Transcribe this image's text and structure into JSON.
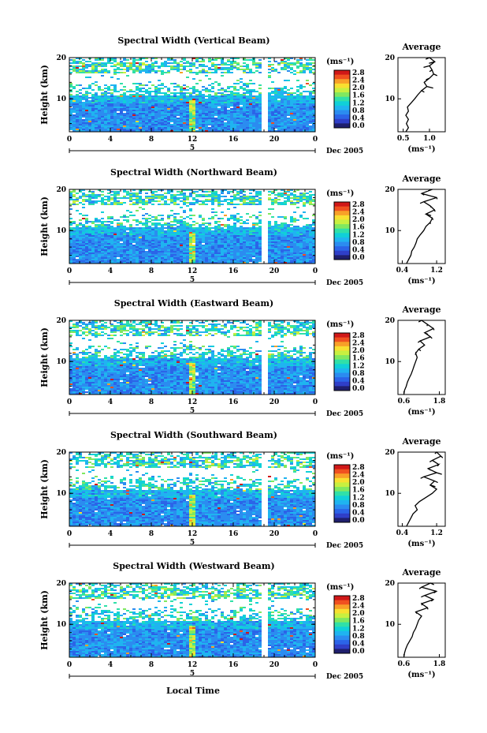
{
  "figure": {
    "xlabel": "Local Time",
    "ylabel": "Height (km)",
    "avg_title": "Average",
    "avg_unit": "(ms⁻¹)",
    "cb_unit": "(ms⁻¹)",
    "date_label": "Dec 2005",
    "day_label": "5",
    "colorbar_colors": [
      "#1f1f6e",
      "#2f3fc8",
      "#2b64e8",
      "#2b8cf0",
      "#1fb4f0",
      "#10d0d8",
      "#30e0a8",
      "#80e860",
      "#c8f040",
      "#f8e030",
      "#f8a028",
      "#f05020",
      "#d01818"
    ]
  },
  "chart_data": [
    {
      "type": "heatmap",
      "title": "Spectral Width (Vertical Beam)",
      "x_ticks": [
        "0",
        "4",
        "8",
        "12",
        "16",
        "20",
        "0"
      ],
      "y_ticks": [
        "20",
        "10"
      ],
      "ylim": [
        2,
        20
      ],
      "xlim": [
        0,
        24
      ],
      "colorbar_ticks": [
        "2.8",
        "2.4",
        "2.0",
        "1.6",
        "1.2",
        "0.8",
        "0.4",
        "0.0"
      ],
      "avg_x_ticks": [
        "0.5",
        "1.0"
      ],
      "avg_xlim": [
        0.4,
        1.3
      ],
      "avg_profile": [
        [
          0.55,
          2
        ],
        [
          0.6,
          3
        ],
        [
          0.56,
          4
        ],
        [
          0.6,
          5
        ],
        [
          0.55,
          6
        ],
        [
          0.6,
          7
        ],
        [
          0.58,
          8
        ],
        [
          0.65,
          9
        ],
        [
          0.72,
          10
        ],
        [
          0.78,
          11
        ],
        [
          0.85,
          12
        ],
        [
          0.95,
          13
        ],
        [
          0.9,
          14
        ],
        [
          1.0,
          15
        ],
        [
          1.08,
          16
        ],
        [
          1.05,
          17
        ],
        [
          1.0,
          18
        ],
        [
          1.1,
          19
        ],
        [
          1.0,
          20
        ]
      ]
    },
    {
      "type": "heatmap",
      "title": "Spectral Width (Northward Beam)",
      "x_ticks": [
        "0",
        "4",
        "8",
        "12",
        "16",
        "20",
        "0"
      ],
      "y_ticks": [
        "20",
        "10"
      ],
      "ylim": [
        2,
        20
      ],
      "xlim": [
        0,
        24
      ],
      "colorbar_ticks": [
        "2.8",
        "2.4",
        "2.0",
        "1.6",
        "1.2",
        "0.8",
        "0.4",
        "0.0"
      ],
      "avg_x_ticks": [
        "0.4",
        "1.2"
      ],
      "avg_xlim": [
        0.3,
        1.4
      ],
      "avg_profile": [
        [
          0.5,
          2
        ],
        [
          0.55,
          3
        ],
        [
          0.6,
          4
        ],
        [
          0.62,
          5
        ],
        [
          0.68,
          6
        ],
        [
          0.72,
          7
        ],
        [
          0.75,
          8
        ],
        [
          0.82,
          9
        ],
        [
          0.9,
          10
        ],
        [
          0.95,
          11
        ],
        [
          1.05,
          12
        ],
        [
          1.1,
          13
        ],
        [
          0.95,
          14
        ],
        [
          1.15,
          15
        ],
        [
          1.05,
          16
        ],
        [
          0.9,
          17
        ],
        [
          1.2,
          18
        ],
        [
          0.85,
          19
        ],
        [
          1.1,
          20
        ]
      ]
    },
    {
      "type": "heatmap",
      "title": "Spectral Width (Eastward Beam)",
      "x_ticks": [
        "0",
        "4",
        "8",
        "12",
        "16",
        "20",
        "0"
      ],
      "y_ticks": [
        "20",
        "10"
      ],
      "ylim": [
        2,
        20
      ],
      "xlim": [
        0,
        24
      ],
      "colorbar_ticks": [
        "2.8",
        "2.4",
        "2.0",
        "1.6",
        "1.2",
        "0.8",
        "0.4",
        "0.0"
      ],
      "avg_x_ticks": [
        "0.6",
        "1.8"
      ],
      "avg_xlim": [
        0.4,
        2.0
      ],
      "avg_profile": [
        [
          0.6,
          2
        ],
        [
          0.62,
          3
        ],
        [
          0.68,
          4
        ],
        [
          0.72,
          5
        ],
        [
          0.78,
          6
        ],
        [
          0.85,
          7
        ],
        [
          0.9,
          8
        ],
        [
          0.95,
          9
        ],
        [
          1.0,
          10
        ],
        [
          1.05,
          11
        ],
        [
          1.0,
          12
        ],
        [
          1.1,
          13
        ],
        [
          1.3,
          14
        ],
        [
          1.15,
          15
        ],
        [
          1.5,
          16
        ],
        [
          1.3,
          17
        ],
        [
          1.6,
          18
        ],
        [
          1.4,
          19
        ],
        [
          1.2,
          20
        ]
      ]
    },
    {
      "type": "heatmap",
      "title": "Spectral Width (Southward Beam)",
      "x_ticks": [
        "0",
        "4",
        "8",
        "12",
        "16",
        "20",
        "0"
      ],
      "y_ticks": [
        "20",
        "10"
      ],
      "ylim": [
        2,
        20
      ],
      "xlim": [
        0,
        24
      ],
      "colorbar_ticks": [
        "2.8",
        "2.4",
        "2.0",
        "1.6",
        "1.2",
        "0.8",
        "0.4",
        "0.0"
      ],
      "avg_x_ticks": [
        "0.4",
        "1.2"
      ],
      "avg_xlim": [
        0.3,
        1.4
      ],
      "avg_profile": [
        [
          0.5,
          2
        ],
        [
          0.55,
          3
        ],
        [
          0.6,
          4
        ],
        [
          0.65,
          5
        ],
        [
          0.75,
          6
        ],
        [
          0.7,
          7
        ],
        [
          0.8,
          8
        ],
        [
          0.95,
          9
        ],
        [
          1.1,
          10
        ],
        [
          1.2,
          11
        ],
        [
          1.05,
          12
        ],
        [
          1.15,
          13
        ],
        [
          0.9,
          14
        ],
        [
          1.2,
          15
        ],
        [
          1.0,
          16
        ],
        [
          1.25,
          17
        ],
        [
          1.1,
          18
        ],
        [
          1.3,
          19
        ],
        [
          1.2,
          20
        ]
      ]
    },
    {
      "type": "heatmap",
      "title": "Spectral Width (Westward Beam)",
      "x_ticks": [
        "0",
        "4",
        "8",
        "12",
        "16",
        "20",
        "0"
      ],
      "y_ticks": [
        "20",
        "10"
      ],
      "ylim": [
        2,
        20
      ],
      "xlim": [
        0,
        24
      ],
      "colorbar_ticks": [
        "2.8",
        "2.4",
        "2.0",
        "1.6",
        "1.2",
        "0.8",
        "0.4",
        "0.0"
      ],
      "avg_x_ticks": [
        "0.6",
        "1.8"
      ],
      "avg_xlim": [
        0.4,
        2.0
      ],
      "avg_profile": [
        [
          0.6,
          2
        ],
        [
          0.62,
          3
        ],
        [
          0.66,
          4
        ],
        [
          0.72,
          5
        ],
        [
          0.8,
          6
        ],
        [
          0.88,
          7
        ],
        [
          0.92,
          8
        ],
        [
          1.0,
          9
        ],
        [
          1.05,
          10
        ],
        [
          1.1,
          11
        ],
        [
          1.2,
          12
        ],
        [
          1.0,
          13
        ],
        [
          1.4,
          14
        ],
        [
          1.2,
          15
        ],
        [
          1.6,
          16
        ],
        [
          1.3,
          17
        ],
        [
          1.7,
          18
        ],
        [
          1.2,
          19
        ],
        [
          1.5,
          20
        ]
      ]
    }
  ]
}
